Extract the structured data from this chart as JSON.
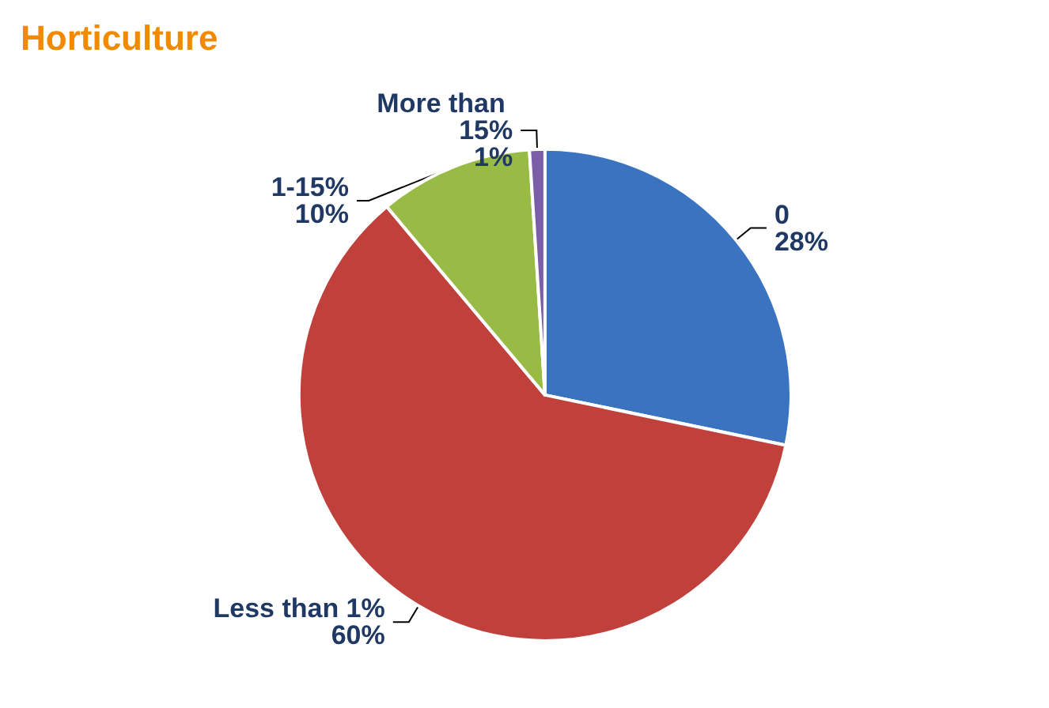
{
  "chart_data": {
    "type": "pie",
    "title": "Horticulture",
    "categories": [
      "0",
      "Less than 1%",
      "1-15%",
      "More than 15%"
    ],
    "values": [
      28,
      60,
      10,
      1
    ],
    "value_labels": [
      "28%",
      "60%",
      "10%",
      "1%"
    ],
    "colors": [
      "#3a74c0",
      "#c0403c",
      "#98bb45",
      "#7b5ea8"
    ],
    "legend": false
  }
}
